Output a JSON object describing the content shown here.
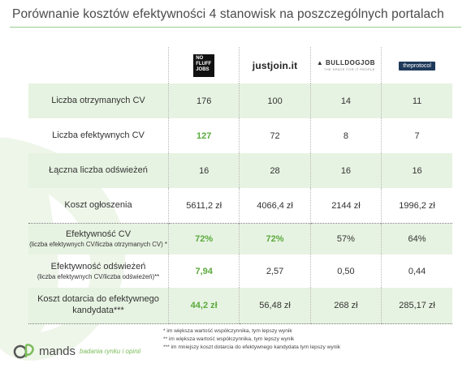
{
  "title": "Porównanie kosztów efektywności 4 stanowisk na poszczególnych portalach",
  "portals": {
    "nofluffjobs": {
      "line1": "NO",
      "line2": "FLUFF",
      "line3": "JOBS"
    },
    "justjoin": "justjoin.it",
    "bulldogjob": {
      "name": "BULLDOGJOB",
      "tagline": "THE SPACE FOR IT PEOPLE"
    },
    "theprotocol": "theprotocol"
  },
  "rows": [
    {
      "label": "Liczba otrzymanych CV",
      "sub": "",
      "values": [
        "176",
        "100",
        "14",
        "11"
      ],
      "highlight": [
        false,
        false,
        false,
        false
      ]
    },
    {
      "label": "Liczba efektywnych CV",
      "sub": "",
      "values": [
        "127",
        "72",
        "8",
        "7"
      ],
      "highlight": [
        true,
        false,
        false,
        false
      ]
    },
    {
      "label": "Łączna liczba odświeżeń",
      "sub": "",
      "values": [
        "16",
        "28",
        "16",
        "16"
      ],
      "highlight": [
        false,
        false,
        false,
        false
      ]
    },
    {
      "label": "Koszt ogłoszenia",
      "sub": "",
      "values": [
        "5611,2 zł",
        "4066,4 zł",
        "2144 zł",
        "1996,2 zł"
      ],
      "highlight": [
        false,
        false,
        false,
        false
      ]
    },
    {
      "label": "Efektywność CV",
      "sub": "(liczba efektywnych CV/liczba otrzymanych CV) *",
      "values": [
        "72%",
        "72%",
        "57%",
        "64%"
      ],
      "highlight": [
        true,
        true,
        false,
        false
      ]
    },
    {
      "label": "Efektywność odświeżeń",
      "sub": "(liczba efektywnych  CV/liczba odświeżeń)**",
      "values": [
        "7,94",
        "2,57",
        "0,50",
        "0,44"
      ],
      "highlight": [
        true,
        false,
        false,
        false
      ]
    },
    {
      "label": "Koszt dotarcia do efektywnego kandydata***",
      "sub": "",
      "values": [
        "44,2 zł",
        "56,48 zł",
        "268 zł",
        "285,17 zł"
      ],
      "highlight": [
        true,
        false,
        false,
        false
      ]
    }
  ],
  "notes": [
    "* im większa wartość współczynnika, tym lepszy wynik",
    "** im większa wartość współczynnika, tym lepszy wynik",
    "*** im mniejszy koszt dotarcia do efektywnego kandydata tym lepszy wynik"
  ],
  "footer": {
    "brand": "mands",
    "tagline": "badania rynku i opinii"
  },
  "colors": {
    "accent": "#5aaa3c",
    "row_band": "#e7f3e2",
    "rule": "#9bd08e"
  }
}
